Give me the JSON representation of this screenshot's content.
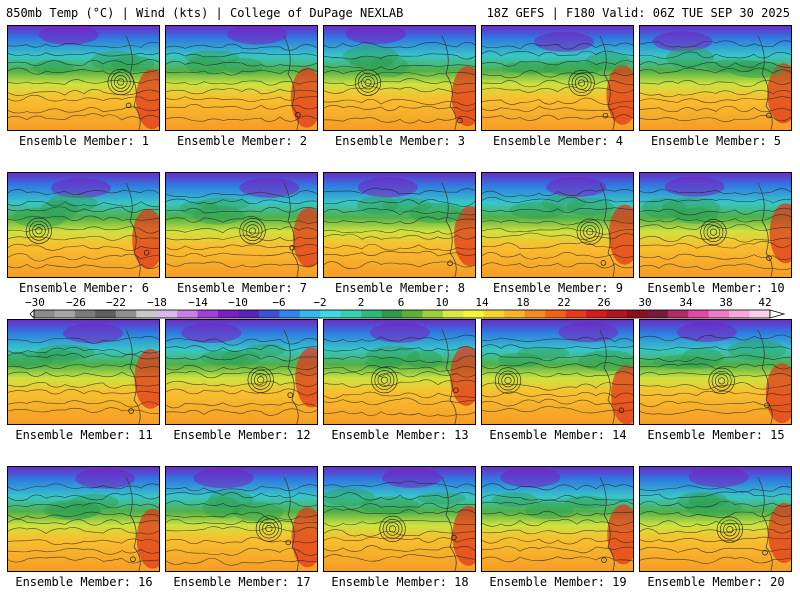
{
  "header": {
    "left": "850mb Temp (°C) | Wind (kts) | College of DuPage NEXLAB",
    "right": "18Z GEFS | F180 Valid: 06Z TUE SEP 30 2025"
  },
  "colorbar": {
    "ticks": [
      "-30",
      "-26",
      "-22",
      "-18",
      "-14",
      "-10",
      "-6",
      "-2",
      "2",
      "6",
      "10",
      "14",
      "18",
      "22",
      "26",
      "30",
      "34",
      "38",
      "42"
    ],
    "colors": [
      "#8c8c8c",
      "#a6a6a6",
      "#7a7a7a",
      "#5e5e5e",
      "#8f8f8f",
      "#c8c8c8",
      "#d8b8e8",
      "#c87ee6",
      "#a040d8",
      "#7a1fc0",
      "#5a24b8",
      "#3e4fd6",
      "#2f86ec",
      "#35b6ee",
      "#43d8e0",
      "#37d0b0",
      "#2fb87a",
      "#2f9a4e",
      "#5fae3a",
      "#9ccf3a",
      "#d8e848",
      "#f5f33a",
      "#f8d432",
      "#f8b22c",
      "#f58a22",
      "#f0621c",
      "#e63a1c",
      "#d41c1e",
      "#b0141c",
      "#8a1020",
      "#7a1a3a",
      "#b02a6a",
      "#e04aa0",
      "#f07ac4",
      "#f7a8da",
      "#fad0ea"
    ]
  },
  "panels": [
    {
      "label": "Ensemble Member: 1"
    },
    {
      "label": "Ensemble Member: 2"
    },
    {
      "label": "Ensemble Member: 3"
    },
    {
      "label": "Ensemble Member: 4"
    },
    {
      "label": "Ensemble Member: 5"
    },
    {
      "label": "Ensemble Member: 6"
    },
    {
      "label": "Ensemble Member: 7"
    },
    {
      "label": "Ensemble Member: 8"
    },
    {
      "label": "Ensemble Member: 9"
    },
    {
      "label": "Ensemble Member: 10"
    },
    {
      "label": "Ensemble Member: 11"
    },
    {
      "label": "Ensemble Member: 12"
    },
    {
      "label": "Ensemble Member: 13"
    },
    {
      "label": "Ensemble Member: 14"
    },
    {
      "label": "Ensemble Member: 15"
    },
    {
      "label": "Ensemble Member: 16"
    },
    {
      "label": "Ensemble Member: 17"
    },
    {
      "label": "Ensemble Member: 18"
    },
    {
      "label": "Ensemble Member: 19"
    },
    {
      "label": "Ensemble Member: 20"
    }
  ]
}
